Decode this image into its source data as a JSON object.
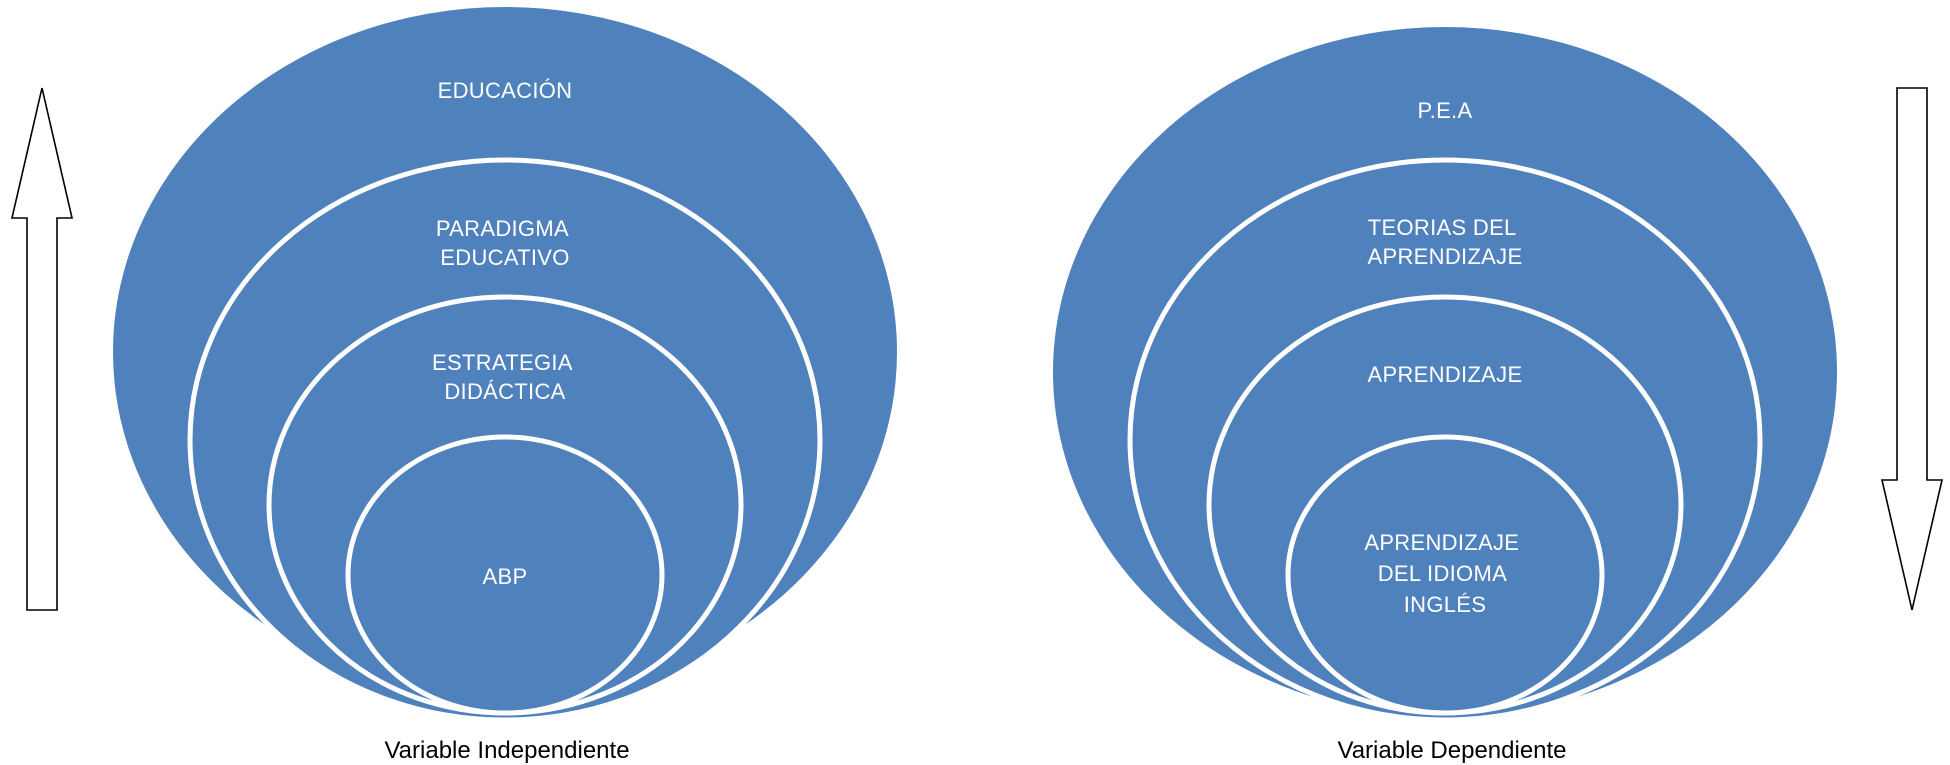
{
  "diagrams": [
    {
      "caption": "Variable Independiente",
      "arrow_direction": "up",
      "levels": [
        [
          "EDUCACIÓN"
        ],
        [
          "PARADIGMA",
          "EDUCATIVO"
        ],
        [
          "ESTRATEGIA",
          "DIDÁCTICA"
        ],
        [
          "ABP"
        ]
      ]
    },
    {
      "caption": "Variable Dependiente",
      "arrow_direction": "down",
      "levels": [
        [
          "P.E.A"
        ],
        [
          "TEORIAS DEL",
          "APRENDIZAJE"
        ],
        [
          "APRENDIZAJE"
        ],
        [
          "APRENDIZAJE",
          "DEL IDIOMA",
          "INGLÉS"
        ]
      ]
    }
  ],
  "colors": {
    "ring_fill": "#4f81bd",
    "ring_stroke": "#ffffff",
    "label_text": "#ffffff",
    "caption_text": "#000000"
  }
}
